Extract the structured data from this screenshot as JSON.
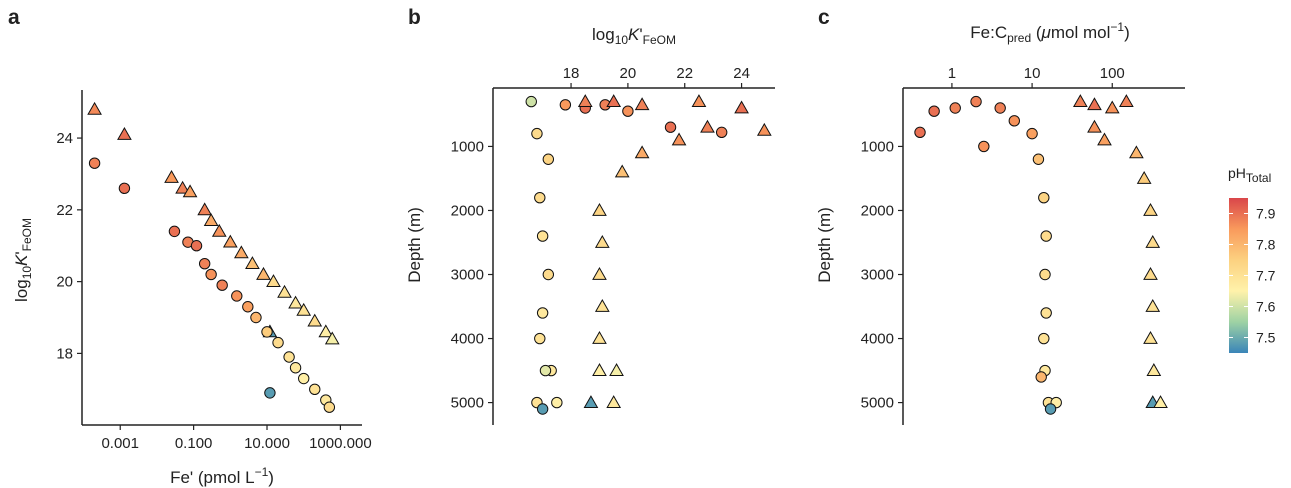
{
  "panel_a": {
    "label": "a",
    "ylabel": {
      "prefix": "log",
      "sub10": "10",
      "italic": "K",
      "prime": "'",
      "sub": "FeOM"
    },
    "xlabel": {
      "main": "Fe' (pmol L",
      "sup": "−1",
      "close": ")"
    }
  },
  "panel_b": {
    "label": "b",
    "xlabel": {
      "prefix": "log",
      "sub10": "10",
      "italic": "K",
      "prime": "'",
      "sub": "FeOM"
    },
    "ylabel": "Depth (m)"
  },
  "panel_c": {
    "label": "c",
    "xlabel": {
      "main": "Fe:C",
      "sub": "pred",
      "open": " (",
      "mu": "μ",
      "unit": "mol mol",
      "sup": "−1",
      "close": ")"
    },
    "ylabel": "Depth (m)"
  },
  "legend": {
    "title_main": "pH",
    "title_sub": "Total",
    "ticks": [
      "7.9",
      "7.8",
      "7.7",
      "7.6",
      "7.5"
    ],
    "tick_values": [
      7.9,
      7.8,
      7.7,
      7.6,
      7.5
    ],
    "range": [
      7.45,
      7.95
    ],
    "colors": [
      "#3a85b8",
      "#9ed2a4",
      "#fff2aa",
      "#fcd180",
      "#f99a5c",
      "#d9464a"
    ]
  },
  "chart_data": [
    {
      "type": "scatter",
      "panel": "a",
      "xscale": "log",
      "xlim": [
        0.00015,
        2500
      ],
      "ylim": [
        16.2,
        25.2
      ],
      "x_ticks": [
        "0.001",
        "0.100",
        "10.000",
        "1000.000"
      ],
      "x_tick_values": [
        0.001,
        0.1,
        10,
        1000
      ],
      "y_ticks": [
        "18",
        "20",
        "22",
        "24"
      ],
      "y_tick_values": [
        18,
        20,
        22,
        24
      ],
      "series": [
        {
          "marker": "triangle",
          "points": [
            [
              0.0002,
              24.8,
              7.87
            ],
            [
              0.0013,
              24.1,
              7.9
            ],
            [
              0.025,
              22.9,
              7.85
            ],
            [
              0.05,
              22.6,
              7.88
            ],
            [
              0.08,
              22.5,
              7.84
            ],
            [
              0.2,
              22.0,
              7.88
            ],
            [
              0.3,
              21.7,
              7.82
            ],
            [
              0.5,
              21.4,
              7.86
            ],
            [
              1.0,
              21.1,
              7.84
            ],
            [
              2,
              20.8,
              7.82
            ],
            [
              4,
              20.5,
              7.78
            ],
            [
              8,
              20.2,
              7.8
            ],
            [
              15,
              20.0,
              7.72
            ],
            [
              30,
              19.7,
              7.7
            ],
            [
              60,
              19.4,
              7.68
            ],
            [
              100,
              19.2,
              7.7
            ],
            [
              200,
              18.9,
              7.72
            ],
            [
              400,
              18.6,
              7.66
            ],
            [
              12,
              18.6,
              7.48
            ],
            [
              600,
              18.4,
              7.64
            ]
          ]
        },
        {
          "marker": "circle",
          "points": [
            [
              0.0002,
              23.3,
              7.88
            ],
            [
              0.0013,
              22.6,
              7.9
            ],
            [
              0.03,
              21.4,
              7.9
            ],
            [
              0.07,
              21.1,
              7.88
            ],
            [
              0.12,
              21.0,
              7.9
            ],
            [
              0.2,
              20.5,
              7.88
            ],
            [
              0.3,
              20.2,
              7.86
            ],
            [
              0.6,
              19.9,
              7.88
            ],
            [
              1.5,
              19.6,
              7.86
            ],
            [
              3,
              19.3,
              7.84
            ],
            [
              5,
              19.0,
              7.8
            ],
            [
              10,
              18.6,
              7.76
            ],
            [
              20,
              18.3,
              7.72
            ],
            [
              40,
              17.9,
              7.7
            ],
            [
              60,
              17.6,
              7.68
            ],
            [
              100,
              17.3,
              7.66
            ],
            [
              200,
              17.0,
              7.7
            ],
            [
              400,
              16.7,
              7.68
            ],
            [
              500,
              16.5,
              7.72
            ],
            [
              12,
              16.9,
              7.48
            ]
          ]
        }
      ]
    },
    {
      "type": "scatter",
      "panel": "b",
      "xlim": [
        15.5,
        25.0
      ],
      "ylim": [
        5350,
        150
      ],
      "x_ticks": [
        "18",
        "20",
        "22",
        "24"
      ],
      "x_tick_values": [
        18,
        20,
        22,
        24
      ],
      "y_ticks": [
        "1000",
        "2000",
        "3000",
        "4000",
        "5000"
      ],
      "y_tick_values": [
        1000,
        2000,
        3000,
        4000,
        5000
      ],
      "series": [
        {
          "marker": "circle",
          "points": [
            [
              16.6,
              300,
              7.6
            ],
            [
              17.8,
              350,
              7.85
            ],
            [
              18.5,
              400,
              7.9
            ],
            [
              19.2,
              350,
              7.88
            ],
            [
              20.0,
              450,
              7.86
            ],
            [
              21.5,
              700,
              7.9
            ],
            [
              23.3,
              780,
              7.88
            ],
            [
              16.8,
              800,
              7.72
            ],
            [
              17.2,
              1200,
              7.74
            ],
            [
              16.9,
              1800,
              7.72
            ],
            [
              17.0,
              2400,
              7.7
            ],
            [
              17.2,
              3000,
              7.72
            ],
            [
              17.0,
              3600,
              7.68
            ],
            [
              16.9,
              4000,
              7.7
            ],
            [
              17.3,
              4500,
              7.68
            ],
            [
              17.1,
              4500,
              7.62
            ],
            [
              16.8,
              5000,
              7.7
            ],
            [
              17.5,
              5000,
              7.66
            ],
            [
              17.0,
              5100,
              7.48
            ]
          ]
        },
        {
          "marker": "triangle",
          "points": [
            [
              18.5,
              300,
              7.88
            ],
            [
              19.5,
              300,
              7.9
            ],
            [
              20.5,
              350,
              7.88
            ],
            [
              22.5,
              300,
              7.86
            ],
            [
              24.0,
              400,
              7.9
            ],
            [
              24.8,
              750,
              7.86
            ],
            [
              22.8,
              700,
              7.88
            ],
            [
              21.8,
              900,
              7.86
            ],
            [
              20.5,
              1100,
              7.82
            ],
            [
              19.8,
              1400,
              7.78
            ],
            [
              19.0,
              2000,
              7.74
            ],
            [
              19.1,
              2500,
              7.72
            ],
            [
              19.0,
              3000,
              7.72
            ],
            [
              19.1,
              3500,
              7.7
            ],
            [
              19.0,
              4000,
              7.7
            ],
            [
              19.0,
              4500,
              7.66
            ],
            [
              19.6,
              4500,
              7.64
            ],
            [
              18.7,
              5000,
              7.48
            ],
            [
              19.5,
              5000,
              7.68
            ]
          ]
        }
      ]
    },
    {
      "type": "scatter",
      "panel": "c",
      "xscale": "log",
      "xlim": [
        0.3,
        700
      ],
      "ylim": [
        5350,
        150
      ],
      "x_ticks": [
        "1",
        "10",
        "100"
      ],
      "x_tick_values": [
        1,
        10,
        100
      ],
      "y_ticks": [
        "1000",
        "2000",
        "3000",
        "4000",
        "5000"
      ],
      "y_tick_values": [
        1000,
        2000,
        3000,
        4000,
        5000
      ],
      "series": [
        {
          "marker": "circle",
          "points": [
            [
              0.4,
              780,
              7.9
            ],
            [
              0.6,
              450,
              7.9
            ],
            [
              1.1,
              400,
              7.88
            ],
            [
              2.0,
              300,
              7.88
            ],
            [
              2.5,
              1000,
              7.86
            ],
            [
              4,
              400,
              7.88
            ],
            [
              6,
              600,
              7.86
            ],
            [
              10,
              800,
              7.84
            ],
            [
              12,
              1200,
              7.78
            ],
            [
              14,
              1800,
              7.74
            ],
            [
              15,
              2400,
              7.72
            ],
            [
              14.5,
              3000,
              7.72
            ],
            [
              15,
              3600,
              7.7
            ],
            [
              14,
              4000,
              7.7
            ],
            [
              14.5,
              4500,
              7.68
            ],
            [
              13,
              4600,
              7.8
            ],
            [
              16,
              5000,
              7.7
            ],
            [
              20,
              5000,
              7.66
            ],
            [
              17,
              5100,
              7.48
            ]
          ]
        },
        {
          "marker": "triangle",
          "points": [
            [
              40,
              300,
              7.88
            ],
            [
              60,
              350,
              7.9
            ],
            [
              100,
              400,
              7.86
            ],
            [
              150,
              300,
              7.88
            ],
            [
              60,
              700,
              7.86
            ],
            [
              80,
              900,
              7.84
            ],
            [
              200,
              1100,
              7.8
            ],
            [
              250,
              1500,
              7.76
            ],
            [
              300,
              2000,
              7.74
            ],
            [
              320,
              2500,
              7.72
            ],
            [
              300,
              3000,
              7.72
            ],
            [
              320,
              3500,
              7.7
            ],
            [
              300,
              4000,
              7.7
            ],
            [
              330,
              4500,
              7.68
            ],
            [
              320,
              5000,
              7.48
            ],
            [
              400,
              5000,
              7.66
            ]
          ]
        }
      ]
    }
  ]
}
